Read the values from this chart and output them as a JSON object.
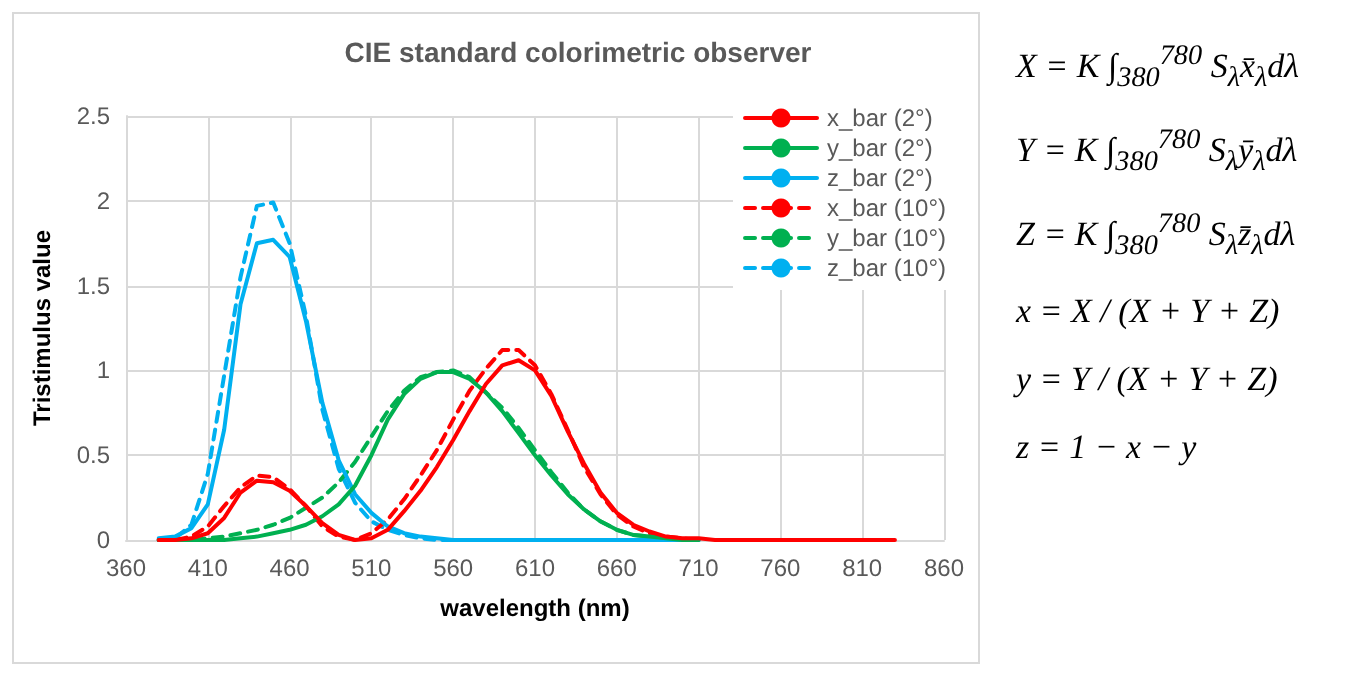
{
  "chart_data": {
    "type": "line",
    "title": "CIE standard colorimetric observer",
    "xlabel": "wavelength (nm)",
    "ylabel": "Tristimulus value",
    "x": [
      380,
      390,
      400,
      410,
      420,
      430,
      440,
      450,
      460,
      470,
      480,
      490,
      500,
      510,
      520,
      530,
      540,
      550,
      560,
      570,
      580,
      590,
      600,
      610,
      620,
      630,
      640,
      650,
      660,
      670,
      680,
      690,
      700,
      710,
      720,
      730,
      740,
      750,
      760,
      770,
      780,
      790,
      800,
      810,
      820,
      830
    ],
    "series": [
      {
        "name": "x_bar (2°)",
        "color": "#ff0000",
        "line_style": "solid",
        "values": [
          0,
          0,
          0.01,
          0.04,
          0.13,
          0.28,
          0.35,
          0.34,
          0.29,
          0.2,
          0.1,
          0.03,
          0,
          0.01,
          0.06,
          0.17,
          0.29,
          0.43,
          0.59,
          0.76,
          0.92,
          1.03,
          1.06,
          1,
          0.85,
          0.64,
          0.45,
          0.28,
          0.16,
          0.09,
          0.05,
          0.02,
          0.01,
          0.01,
          0,
          0,
          0,
          0,
          0,
          0,
          0,
          0,
          0,
          0,
          0,
          0
        ]
      },
      {
        "name": "y_bar (2°)",
        "color": "#00b050",
        "line_style": "solid",
        "values": [
          0,
          0,
          0,
          0,
          0,
          0.01,
          0.02,
          0.04,
          0.06,
          0.09,
          0.14,
          0.21,
          0.32,
          0.5,
          0.71,
          0.86,
          0.95,
          0.99,
          0.99,
          0.95,
          0.87,
          0.76,
          0.63,
          0.5,
          0.38,
          0.27,
          0.18,
          0.11,
          0.06,
          0.03,
          0.02,
          0.01,
          0,
          0,
          null,
          null,
          null,
          null,
          null,
          null,
          null,
          null,
          null,
          null,
          null,
          null
        ]
      },
      {
        "name": "z_bar (2°)",
        "color": "#00b0f0",
        "line_style": "solid",
        "values": [
          0.01,
          0.02,
          0.07,
          0.21,
          0.65,
          1.39,
          1.75,
          1.77,
          1.67,
          1.29,
          0.81,
          0.47,
          0.27,
          0.16,
          0.08,
          0.04,
          0.02,
          0.01,
          0,
          0,
          0,
          0,
          0,
          0,
          0,
          0,
          0,
          0,
          0,
          0,
          0,
          0,
          0,
          0,
          null,
          null,
          null,
          null,
          null,
          null,
          null,
          null,
          null,
          null,
          null,
          null
        ]
      },
      {
        "name": "x_bar (10°)",
        "color": "#ff0000",
        "line_style": "dashed",
        "values": [
          0,
          0,
          0.02,
          0.08,
          0.2,
          0.31,
          0.38,
          0.37,
          0.3,
          0.2,
          0.08,
          0.02,
          0,
          0.04,
          0.12,
          0.24,
          0.38,
          0.53,
          0.71,
          0.88,
          1.01,
          1.12,
          1.12,
          1.03,
          0.86,
          0.65,
          0.43,
          0.27,
          0.15,
          0.08,
          0.04,
          0.02,
          0.01,
          0,
          null,
          null,
          null,
          null,
          null,
          null,
          null,
          null,
          null,
          null,
          null,
          null
        ]
      },
      {
        "name": "y_bar (10°)",
        "color": "#00b050",
        "line_style": "dashed",
        "values": [
          0,
          0,
          0,
          0.01,
          0.02,
          0.04,
          0.06,
          0.09,
          0.13,
          0.19,
          0.25,
          0.34,
          0.46,
          0.61,
          0.76,
          0.88,
          0.96,
          0.99,
          1,
          0.96,
          0.87,
          0.78,
          0.66,
          0.53,
          0.4,
          0.28,
          0.18,
          0.11,
          0.06,
          0.03,
          0.02,
          0.01,
          0,
          0,
          null,
          null,
          null,
          null,
          null,
          null,
          null,
          null,
          null,
          null,
          null,
          null
        ]
      },
      {
        "name": "z_bar (10°)",
        "color": "#00b0f0",
        "line_style": "dashed",
        "values": [
          0,
          0.01,
          0.09,
          0.39,
          0.97,
          1.55,
          1.97,
          1.99,
          1.75,
          1.32,
          0.77,
          0.42,
          0.22,
          0.11,
          0.06,
          0.03,
          0.01,
          0,
          0,
          0,
          0,
          0,
          0,
          0,
          0,
          0,
          0,
          0,
          0,
          0,
          0,
          0,
          0,
          0,
          null,
          null,
          null,
          null,
          null,
          null,
          null,
          null,
          null,
          null,
          null,
          null
        ]
      }
    ],
    "xlim": [
      360,
      860
    ],
    "xticks": [
      360,
      410,
      460,
      510,
      560,
      610,
      660,
      710,
      760,
      810,
      860
    ],
    "ylim": [
      0,
      2.5
    ],
    "yticks": [
      0,
      0.5,
      1,
      1.5,
      2,
      2.5
    ],
    "grid": true,
    "legend": "top right",
    "marker": "none",
    "annotations": [
      "X = K ∫$_{380}$$^{780}$ S$_{λ}$x̄$_{λ}$dλ",
      "Y = K ∫$_{380}$$^{780}$ S$_{λ}$ȳ$_{λ}$dλ",
      "Z = K ∫$_{380}$$^{780}$ S$_{λ}$z̄$_{λ}$dλ",
      "x = X / (X + Y + Z)",
      "y = Y / (X + Y + Z)",
      "z = 1 − x − y"
    ]
  }
}
